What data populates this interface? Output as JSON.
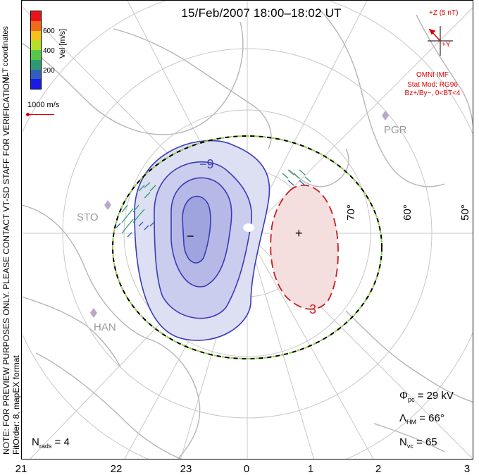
{
  "title": "15/Feb/2007 18:00–18:02 UT",
  "left_notes": {
    "coordinates": "MLT coordinates",
    "verification": "NOTE: FOR PREVIEW PURPOSES ONLY. PLEASE CONTACT VT-SD STAFF FOR VERIFICATION.",
    "fit": "FitOrder: 8, mapEX format"
  },
  "colorbar": {
    "label": "Vel [m/s]",
    "ticks": [
      "600",
      "400",
      "200"
    ],
    "colors": [
      "#e8141a",
      "#f06a1a",
      "#f5c21a",
      "#b7dd2a",
      "#55c84a",
      "#2f9a72",
      "#2f5fc0",
      "#1a1ae8"
    ]
  },
  "reference_vector": "1000 m/s",
  "imf": {
    "z_label": "+Z (5 nT)",
    "y_label": "+Y",
    "source": "OMNI IMF",
    "model": "Stat Mod: RG96",
    "condition": "Bz+/By−, 0<BT<4"
  },
  "mlat_labels": [
    "70°",
    "60°",
    "50°"
  ],
  "stations": [
    "PGR",
    "STO",
    "HAN"
  ],
  "contour_labels": {
    "dusk": "−9",
    "dawn": "3"
  },
  "extrema": {
    "min": "−",
    "max": "+"
  },
  "stats": {
    "phi_symbol": "Φ",
    "phi_sub": "pc",
    "phi_value": "= 29 kV",
    "lambda_symbol": "Λ",
    "lambda_sub": "HM",
    "lambda_value": "= 66°",
    "nvc_symbol": "N",
    "nvc_sub": "vc",
    "nvc_value": "= 65"
  },
  "nrads": {
    "symbol": "N",
    "sub": "rads",
    "value": "= 4"
  },
  "mlt_axis": [
    "21",
    "22",
    "23",
    "0",
    "1",
    "2",
    "3"
  ],
  "colors": {
    "dusk_cell": "#3b3bb8",
    "dawn_cell": "#c81e1e",
    "hm_boundary": "#000000",
    "imf": "#d00000"
  }
}
